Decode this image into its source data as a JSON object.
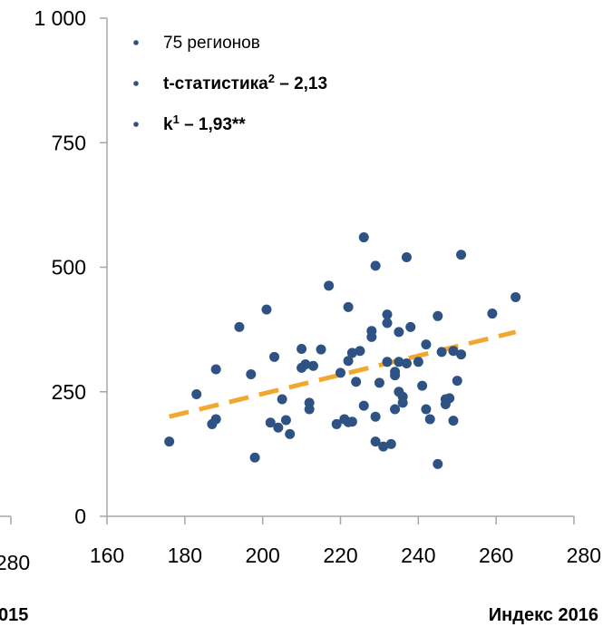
{
  "chart_data": {
    "type": "scatter",
    "xlabel": "Индекс 2016",
    "ylabel": "",
    "xlim": [
      160,
      280
    ],
    "ylim": [
      0,
      1000
    ],
    "x_ticks": [
      "160",
      "180",
      "200",
      "220",
      "240",
      "260",
      "280"
    ],
    "y_ticks": [
      "0",
      "250",
      "500",
      "750",
      "1 000"
    ],
    "grid": false,
    "legend_position": "top-left",
    "legend": [
      {
        "text": "75 регионов",
        "bold": false,
        "sup": ""
      },
      {
        "text": "t-статистика",
        "bold": true,
        "sup": "2",
        "tail": " – 2,13"
      },
      {
        "text": "k",
        "bold": true,
        "sup": "1",
        "tail": " – 1,93**"
      }
    ],
    "colors": {
      "points": "#2e5283",
      "trend": "#f0a830",
      "legend_bullet": "#2e5283"
    },
    "trendline": {
      "x": [
        176,
        265
      ],
      "y": [
        200,
        370
      ],
      "style": "dashed"
    },
    "points": [
      [
        176,
        150
      ],
      [
        183,
        245
      ],
      [
        187,
        185
      ],
      [
        188,
        195
      ],
      [
        188,
        295
      ],
      [
        194,
        380
      ],
      [
        197,
        285
      ],
      [
        198,
        118
      ],
      [
        201,
        415
      ],
      [
        202,
        188
      ],
      [
        203,
        320
      ],
      [
        204,
        178
      ],
      [
        205,
        235
      ],
      [
        206,
        193
      ],
      [
        207,
        165
      ],
      [
        210,
        298
      ],
      [
        210,
        336
      ],
      [
        211,
        305
      ],
      [
        212,
        215
      ],
      [
        212,
        228
      ],
      [
        213,
        302
      ],
      [
        215,
        335
      ],
      [
        217,
        463
      ],
      [
        219,
        185
      ],
      [
        220,
        288
      ],
      [
        221,
        195
      ],
      [
        222,
        189
      ],
      [
        222,
        420
      ],
      [
        222,
        312
      ],
      [
        223,
        190
      ],
      [
        223,
        328
      ],
      [
        224,
        270
      ],
      [
        225,
        332
      ],
      [
        226,
        560
      ],
      [
        226,
        222
      ],
      [
        228,
        360
      ],
      [
        228,
        372
      ],
      [
        229,
        200
      ],
      [
        229,
        150
      ],
      [
        229,
        503
      ],
      [
        230,
        268
      ],
      [
        231,
        140
      ],
      [
        232,
        388
      ],
      [
        232,
        405
      ],
      [
        232,
        310
      ],
      [
        233,
        145
      ],
      [
        234,
        215
      ],
      [
        234,
        290
      ],
      [
        234,
        283
      ],
      [
        235,
        310
      ],
      [
        235,
        370
      ],
      [
        235,
        250
      ],
      [
        236,
        228
      ],
      [
        236,
        240
      ],
      [
        237,
        307
      ],
      [
        237,
        520
      ],
      [
        238,
        380
      ],
      [
        240,
        310
      ],
      [
        241,
        262
      ],
      [
        242,
        215
      ],
      [
        242,
        345
      ],
      [
        243,
        195
      ],
      [
        245,
        105
      ],
      [
        245,
        402
      ],
      [
        246,
        330
      ],
      [
        247,
        225
      ],
      [
        247,
        235
      ],
      [
        248,
        237
      ],
      [
        249,
        332
      ],
      [
        249,
        192
      ],
      [
        250,
        272
      ],
      [
        251,
        325
      ],
      [
        251,
        525
      ],
      [
        259,
        407
      ],
      [
        265,
        440
      ]
    ]
  },
  "left_fragment": {
    "tick_label": "280",
    "title_fragment": "015"
  }
}
